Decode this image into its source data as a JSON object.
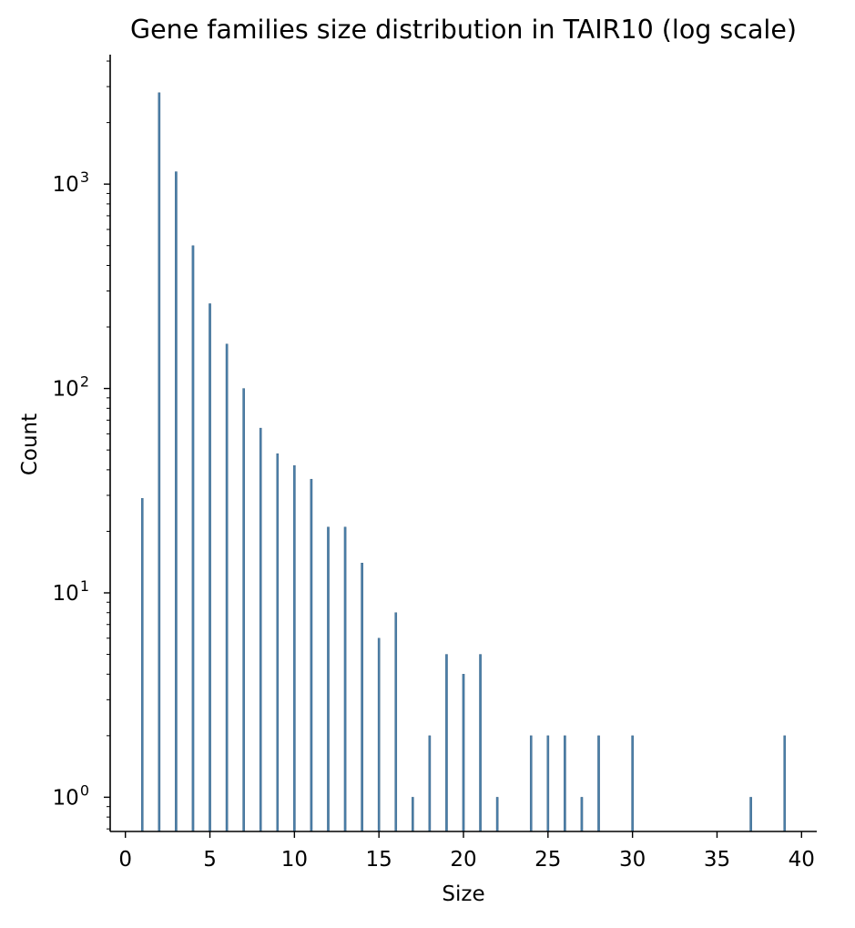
{
  "chart_data": {
    "type": "bar",
    "title": "Gene families size distribution in TAIR10 (log scale)",
    "xlabel": "Size",
    "ylabel": "Count",
    "yscale": "log",
    "xlim": [
      -0.9,
      40.9
    ],
    "ylim": [
      0.68,
      4300
    ],
    "grid": false,
    "bar_color": "#4c7fa8",
    "x_ticks": [
      {
        "value": 0,
        "label": "0"
      },
      {
        "value": 5,
        "label": "5"
      },
      {
        "value": 10,
        "label": "10"
      },
      {
        "value": 15,
        "label": "15"
      },
      {
        "value": 20,
        "label": "20"
      },
      {
        "value": 25,
        "label": "25"
      },
      {
        "value": 30,
        "label": "30"
      },
      {
        "value": 35,
        "label": "35"
      },
      {
        "value": 40,
        "label": "40"
      }
    ],
    "y_ticks": [
      {
        "value": 1,
        "base": "10",
        "exp": "0"
      },
      {
        "value": 10,
        "base": "10",
        "exp": "1"
      },
      {
        "value": 100,
        "base": "10",
        "exp": "2"
      },
      {
        "value": 1000,
        "base": "10",
        "exp": "3"
      }
    ],
    "x": [
      1,
      2,
      3,
      4,
      5,
      6,
      7,
      8,
      9,
      10,
      11,
      12,
      13,
      14,
      15,
      16,
      17,
      18,
      19,
      20,
      21,
      22,
      24,
      25,
      26,
      27,
      28,
      30,
      37,
      39
    ],
    "values": [
      29,
      2800,
      1150,
      500,
      260,
      165,
      100,
      64,
      48,
      42,
      36,
      21,
      21,
      14,
      6,
      8,
      1,
      2,
      5,
      4,
      5,
      1,
      2,
      2,
      2,
      1,
      2,
      2,
      1,
      2
    ]
  }
}
